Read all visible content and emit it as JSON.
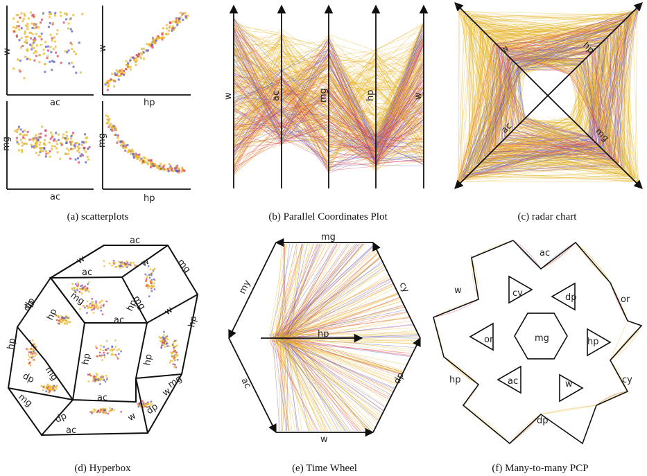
{
  "colors": {
    "yellow": "#e8b52a",
    "red": "#e0405a",
    "blue": "#5a5ec8",
    "axis": "#111111"
  },
  "panels": {
    "a": {
      "caption": "(a) scatterplots",
      "labels": {
        "w_top": "w",
        "mg_bottom": "mg",
        "ac_row1": "ac",
        "hp_row1": "hp",
        "ac_row2": "ac",
        "hp_row2": "hp",
        "w_right": "w",
        "mg_right": "mg"
      }
    },
    "b": {
      "caption": "(b) Parallel Coordinates Plot",
      "axes": [
        "w",
        "ac",
        "mg",
        "hp",
        "w"
      ]
    },
    "c": {
      "caption": "(c) radar chart",
      "axes": [
        "w",
        "hp",
        "ac",
        "mg"
      ]
    },
    "d": {
      "caption": "(d) Hyperbox",
      "labels": [
        "ac",
        "w",
        "w",
        "mg",
        "ac",
        "dp",
        "mg",
        "hp",
        "mg",
        "hp",
        "w",
        "dp",
        "hp",
        "ac",
        "hp",
        "hp",
        "hp",
        "dp",
        "mg",
        "mg",
        "ac",
        "w",
        "dp",
        "w",
        "dp",
        "ac",
        "mg"
      ]
    },
    "e": {
      "caption": "(e) Time Wheel",
      "labels": {
        "top": "mg",
        "upper_left": "my",
        "upper_right": "cy",
        "center": "hp",
        "lower_left": "ac",
        "lower_right": "dp",
        "bottom": "w"
      }
    },
    "f": {
      "caption": "(f) Many-to-many PCP",
      "outer": [
        "ac",
        "w",
        "or",
        "hp",
        "cy",
        "dp"
      ],
      "inner": [
        "cy",
        "dp",
        "or",
        "mg",
        "hp",
        "ac",
        "w"
      ]
    }
  }
}
